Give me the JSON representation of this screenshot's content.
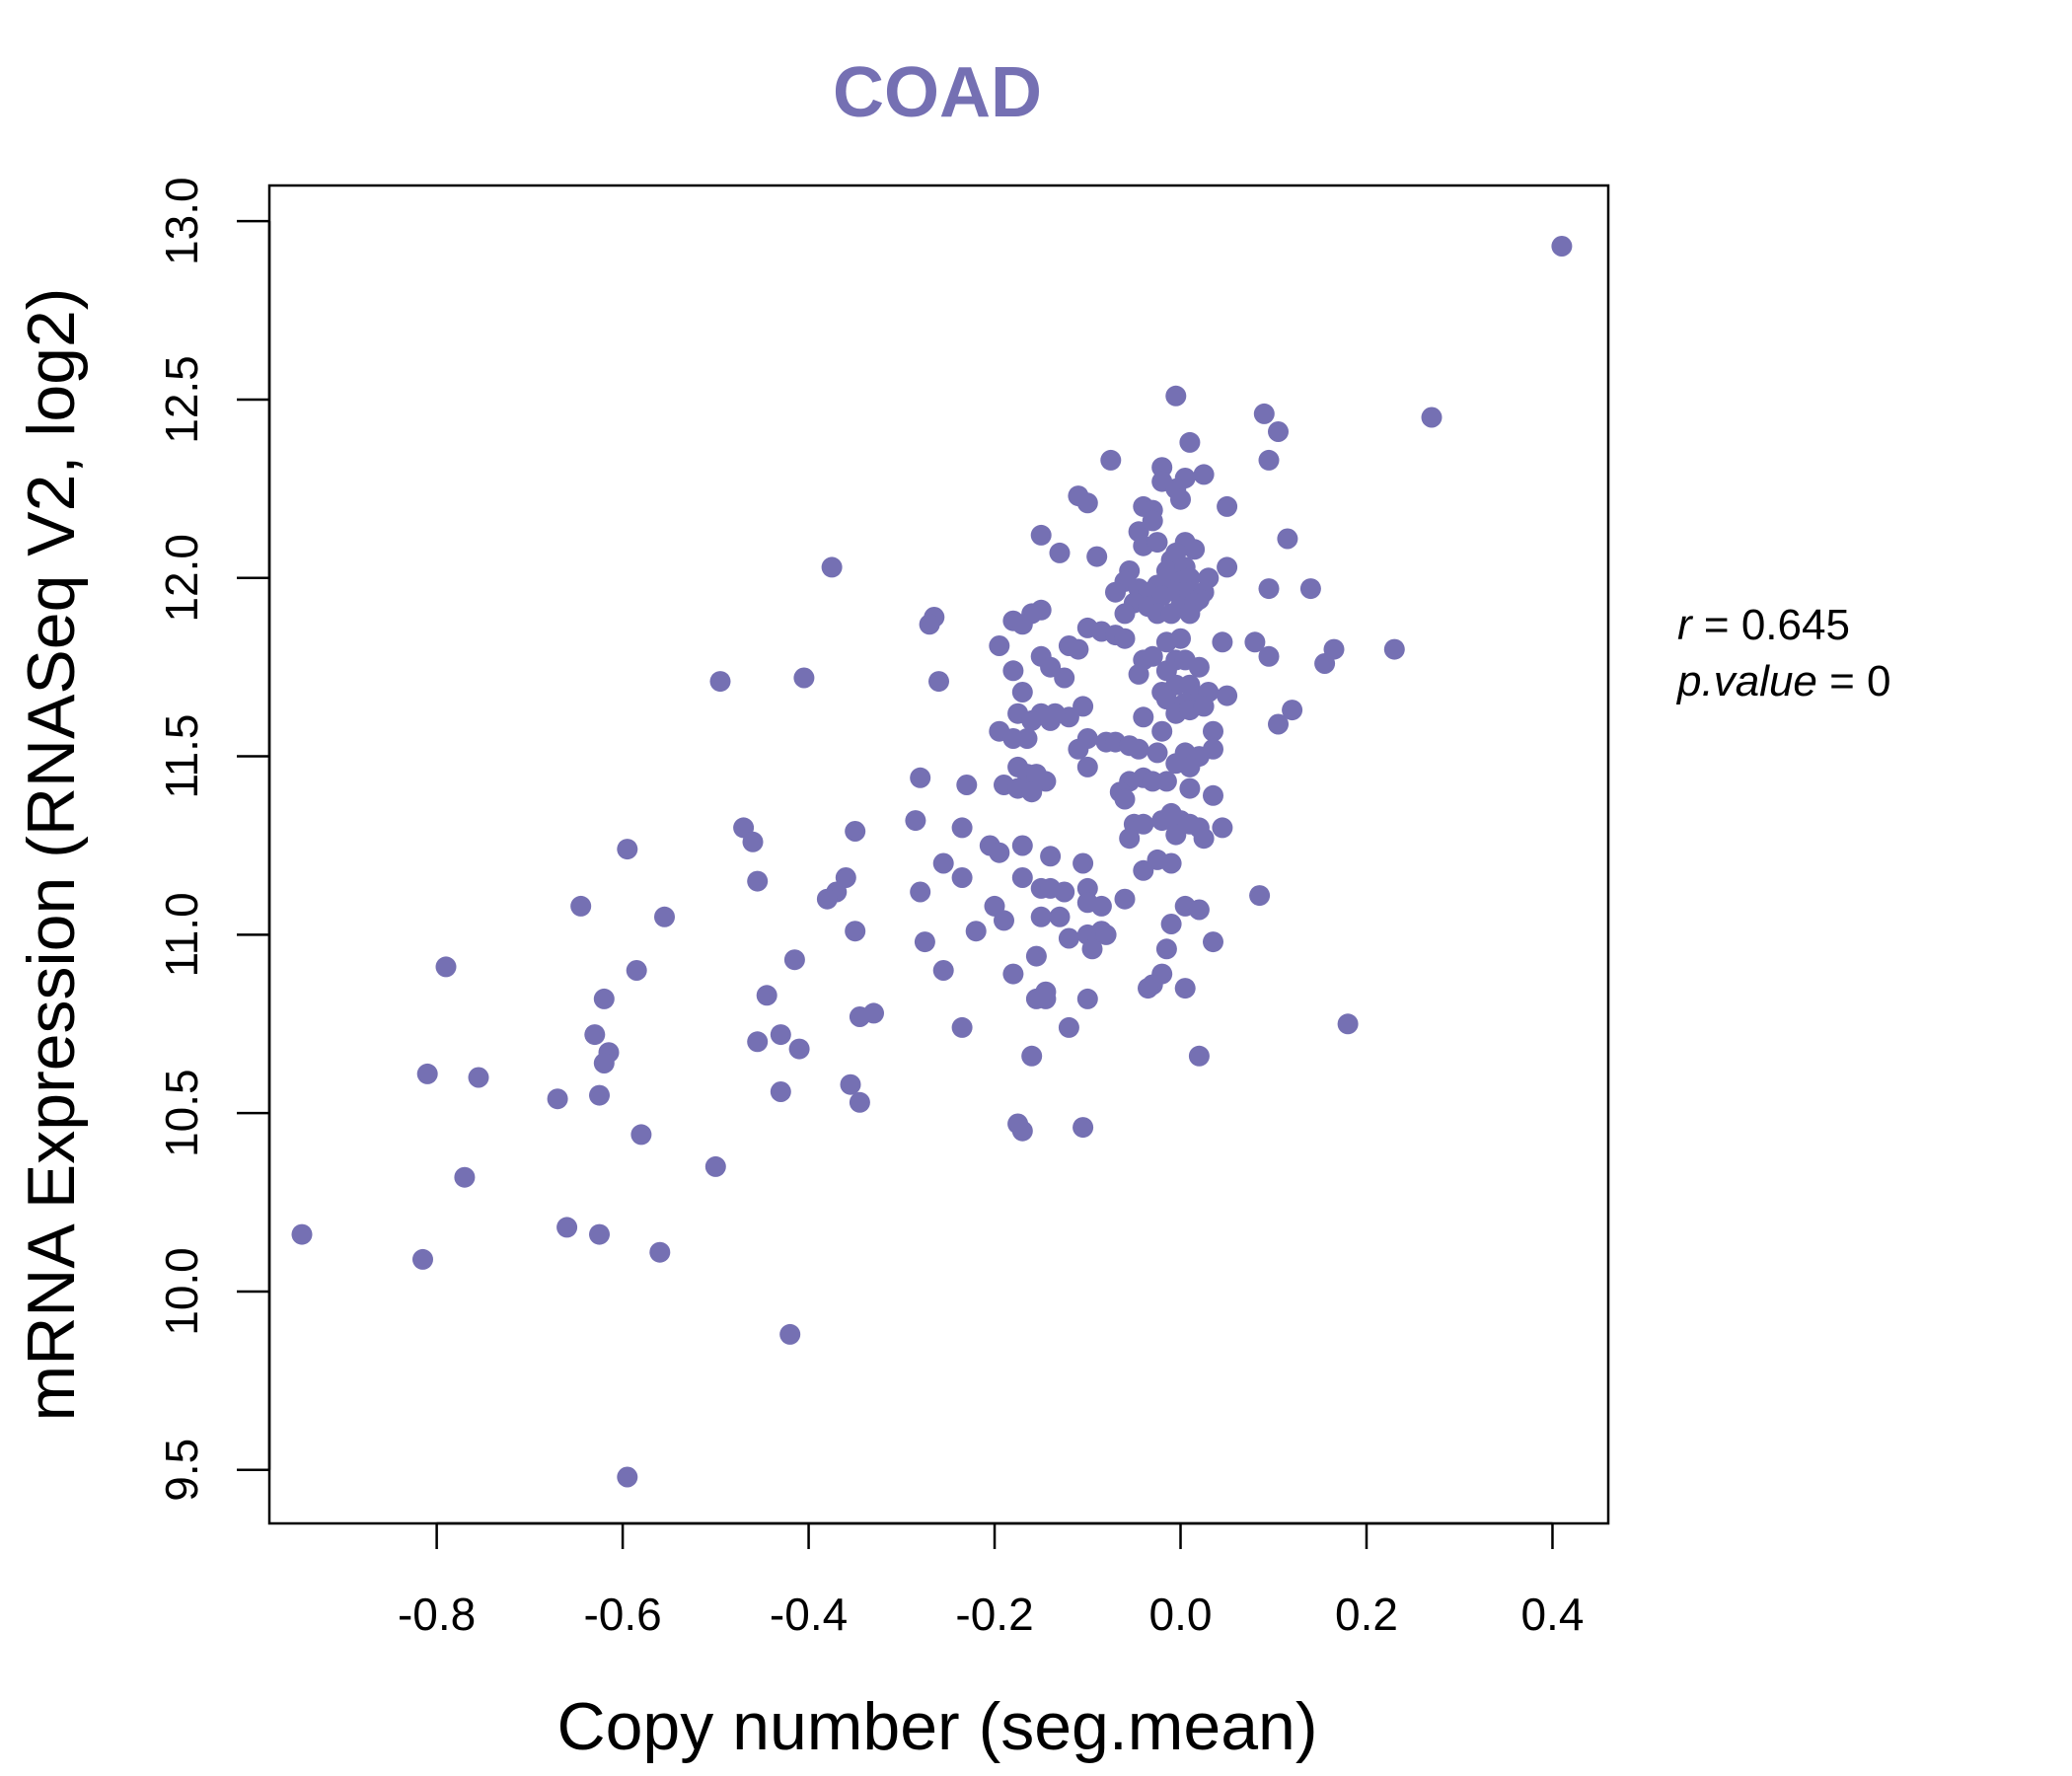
{
  "chart_data": {
    "type": "scatter",
    "title": "COAD",
    "xlabel": "Copy number (seg.mean)",
    "ylabel": "mRNA Expression (RNASeq V2, log2)",
    "xlim": [
      -0.98,
      0.46
    ],
    "ylim": [
      9.35,
      13.1
    ],
    "xticks": [
      "-0.8",
      "-0.6",
      "-0.4",
      "-0.2",
      "0.0",
      "0.2",
      "0.4"
    ],
    "yticks": [
      "9.5",
      "10.0",
      "10.5",
      "11.0",
      "11.5",
      "12.0",
      "12.5",
      "13.0"
    ],
    "grid": false,
    "point_color": "#7570b3",
    "title_color": "#7570b3",
    "annotation": {
      "r_label": "r",
      "r_value": "0.645",
      "p_label": "p.value",
      "p_value": "0"
    },
    "points": [
      [
        0.41,
        12.93
      ],
      [
        0.27,
        12.45
      ],
      [
        -0.005,
        12.51
      ],
      [
        0.09,
        12.46
      ],
      [
        0.105,
        12.41
      ],
      [
        0.01,
        12.38
      ],
      [
        -0.075,
        12.33
      ],
      [
        0.095,
        12.33
      ],
      [
        -0.02,
        12.31
      ],
      [
        0.025,
        12.29
      ],
      [
        -0.02,
        12.27
      ],
      [
        0.005,
        12.28
      ],
      [
        -0.005,
        12.25
      ],
      [
        -0.11,
        12.23
      ],
      [
        -0.1,
        12.21
      ],
      [
        0.0,
        12.22
      ],
      [
        -0.04,
        12.2
      ],
      [
        -0.03,
        12.19
      ],
      [
        0.05,
        12.2
      ],
      [
        -0.045,
        12.13
      ],
      [
        -0.03,
        12.16
      ],
      [
        -0.15,
        12.12
      ],
      [
        0.115,
        12.11
      ],
      [
        -0.04,
        12.09
      ],
      [
        -0.025,
        12.1
      ],
      [
        0.005,
        12.1
      ],
      [
        0.015,
        12.08
      ],
      [
        -0.13,
        12.07
      ],
      [
        -0.09,
        12.06
      ],
      [
        -0.01,
        12.05
      ],
      [
        -0.005,
        12.07
      ],
      [
        -0.375,
        12.03
      ],
      [
        0.05,
        12.03
      ],
      [
        -0.055,
        12.02
      ],
      [
        -0.015,
        12.02
      ],
      [
        0.005,
        12.03
      ],
      [
        -0.06,
        11.99
      ],
      [
        -0.025,
        11.98
      ],
      [
        -0.015,
        12.0
      ],
      [
        0.0,
        11.99
      ],
      [
        0.01,
        12.0
      ],
      [
        0.03,
        12.0
      ],
      [
        0.095,
        11.97
      ],
      [
        0.14,
        11.97
      ],
      [
        -0.045,
        11.97
      ],
      [
        -0.035,
        11.96
      ],
      [
        -0.07,
        11.96
      ],
      [
        -0.005,
        11.96
      ],
      [
        0.01,
        11.96
      ],
      [
        0.025,
        11.96
      ],
      [
        -0.02,
        11.95
      ],
      [
        0.02,
        11.94
      ],
      [
        -0.05,
        11.93
      ],
      [
        -0.035,
        11.92
      ],
      [
        0.0,
        11.92
      ],
      [
        0.015,
        11.93
      ],
      [
        -0.265,
        11.89
      ],
      [
        -0.15,
        11.91
      ],
      [
        -0.16,
        11.9
      ],
      [
        -0.06,
        11.9
      ],
      [
        -0.025,
        11.9
      ],
      [
        -0.01,
        11.9
      ],
      [
        0.01,
        11.9
      ],
      [
        -0.27,
        11.87
      ],
      [
        -0.18,
        11.88
      ],
      [
        -0.17,
        11.87
      ],
      [
        -0.1,
        11.86
      ],
      [
        -0.085,
        11.85
      ],
      [
        -0.07,
        11.84
      ],
      [
        -0.06,
        11.83
      ],
      [
        -0.015,
        11.82
      ],
      [
        0.0,
        11.83
      ],
      [
        0.045,
        11.82
      ],
      [
        0.08,
        11.82
      ],
      [
        -0.195,
        11.81
      ],
      [
        -0.12,
        11.81
      ],
      [
        -0.11,
        11.8
      ],
      [
        0.23,
        11.8
      ],
      [
        0.165,
        11.8
      ],
      [
        0.095,
        11.78
      ],
      [
        -0.15,
        11.78
      ],
      [
        -0.04,
        11.77
      ],
      [
        -0.03,
        11.78
      ],
      [
        -0.005,
        11.77
      ],
      [
        0.005,
        11.77
      ],
      [
        0.155,
        11.76
      ],
      [
        -0.14,
        11.75
      ],
      [
        -0.18,
        11.74
      ],
      [
        -0.045,
        11.73
      ],
      [
        -0.015,
        11.74
      ],
      [
        0.02,
        11.75
      ],
      [
        -0.405,
        11.72
      ],
      [
        -0.495,
        11.71
      ],
      [
        -0.26,
        11.71
      ],
      [
        -0.125,
        11.72
      ],
      [
        -0.005,
        11.7
      ],
      [
        0.01,
        11.7
      ],
      [
        -0.17,
        11.68
      ],
      [
        -0.02,
        11.68
      ],
      [
        0.015,
        11.67
      ],
      [
        0.03,
        11.68
      ],
      [
        0.05,
        11.67
      ],
      [
        -0.015,
        11.66
      ],
      [
        0.005,
        11.65
      ],
      [
        -0.105,
        11.64
      ],
      [
        0.12,
        11.63
      ],
      [
        -0.175,
        11.62
      ],
      [
        -0.15,
        11.62
      ],
      [
        -0.12,
        11.61
      ],
      [
        -0.04,
        11.61
      ],
      [
        -0.005,
        11.62
      ],
      [
        0.01,
        11.63
      ],
      [
        0.025,
        11.64
      ],
      [
        -0.16,
        11.6
      ],
      [
        -0.14,
        11.6
      ],
      [
        -0.135,
        11.62
      ],
      [
        0.105,
        11.59
      ],
      [
        -0.195,
        11.57
      ],
      [
        -0.02,
        11.57
      ],
      [
        0.035,
        11.57
      ],
      [
        -0.18,
        11.55
      ],
      [
        -0.165,
        11.55
      ],
      [
        -0.1,
        11.55
      ],
      [
        -0.08,
        11.54
      ],
      [
        -0.07,
        11.54
      ],
      [
        -0.055,
        11.53
      ],
      [
        -0.045,
        11.52
      ],
      [
        -0.11,
        11.52
      ],
      [
        -0.025,
        11.51
      ],
      [
        0.005,
        11.51
      ],
      [
        0.02,
        11.5
      ],
      [
        0.035,
        11.52
      ],
      [
        -0.005,
        11.48
      ],
      [
        0.01,
        11.47
      ],
      [
        -0.175,
        11.47
      ],
      [
        -0.1,
        11.47
      ],
      [
        -0.165,
        11.45
      ],
      [
        -0.155,
        11.45
      ],
      [
        -0.04,
        11.44
      ],
      [
        -0.28,
        11.44
      ],
      [
        -0.055,
        11.43
      ],
      [
        -0.145,
        11.43
      ],
      [
        -0.03,
        11.43
      ],
      [
        -0.015,
        11.43
      ],
      [
        -0.23,
        11.42
      ],
      [
        -0.19,
        11.42
      ],
      [
        -0.175,
        11.41
      ],
      [
        -0.16,
        11.4
      ],
      [
        0.01,
        11.41
      ],
      [
        -0.065,
        11.4
      ],
      [
        -0.06,
        11.38
      ],
      [
        0.035,
        11.39
      ],
      [
        -0.01,
        11.34
      ],
      [
        -0.02,
        11.32
      ],
      [
        -0.05,
        11.31
      ],
      [
        -0.04,
        11.31
      ],
      [
        0.0,
        11.32
      ],
      [
        -0.01,
        11.33
      ],
      [
        0.01,
        11.31
      ],
      [
        0.02,
        11.3
      ],
      [
        0.045,
        11.3
      ],
      [
        -0.285,
        11.32
      ],
      [
        -0.235,
        11.3
      ],
      [
        -0.47,
        11.3
      ],
      [
        -0.35,
        11.29
      ],
      [
        -0.005,
        11.28
      ],
      [
        0.025,
        11.27
      ],
      [
        -0.055,
        11.27
      ],
      [
        -0.46,
        11.26
      ],
      [
        -0.17,
        11.25
      ],
      [
        -0.205,
        11.25
      ],
      [
        -0.195,
        11.23
      ],
      [
        -0.595,
        11.24
      ],
      [
        -0.14,
        11.22
      ],
      [
        -0.105,
        11.2
      ],
      [
        -0.025,
        11.21
      ],
      [
        -0.01,
        11.2
      ],
      [
        -0.04,
        11.18
      ],
      [
        -0.255,
        11.2
      ],
      [
        -0.235,
        11.16
      ],
      [
        -0.17,
        11.16
      ],
      [
        -0.36,
        11.16
      ],
      [
        -0.455,
        11.15
      ],
      [
        -0.15,
        11.13
      ],
      [
        -0.14,
        11.13
      ],
      [
        -0.125,
        11.12
      ],
      [
        -0.1,
        11.13
      ],
      [
        -0.28,
        11.12
      ],
      [
        -0.37,
        11.12
      ],
      [
        -0.38,
        11.1
      ],
      [
        -0.06,
        11.1
      ],
      [
        -0.1,
        11.09
      ],
      [
        0.085,
        11.11
      ],
      [
        -0.2,
        11.08
      ],
      [
        -0.085,
        11.08
      ],
      [
        0.005,
        11.08
      ],
      [
        0.02,
        11.07
      ],
      [
        -0.645,
        11.08
      ],
      [
        -0.555,
        11.05
      ],
      [
        -0.15,
        11.05
      ],
      [
        -0.13,
        11.05
      ],
      [
        -0.19,
        11.04
      ],
      [
        -0.01,
        11.03
      ],
      [
        -0.35,
        11.01
      ],
      [
        -0.22,
        11.01
      ],
      [
        -0.1,
        11.0
      ],
      [
        -0.085,
        11.01
      ],
      [
        -0.08,
        11.0
      ],
      [
        -0.12,
        10.99
      ],
      [
        -0.275,
        10.98
      ],
      [
        0.035,
        10.98
      ],
      [
        -0.095,
        10.96
      ],
      [
        -0.015,
        10.96
      ],
      [
        -0.155,
        10.94
      ],
      [
        -0.415,
        10.93
      ],
      [
        -0.79,
        10.91
      ],
      [
        -0.585,
        10.9
      ],
      [
        -0.255,
        10.9
      ],
      [
        -0.18,
        10.89
      ],
      [
        -0.02,
        10.89
      ],
      [
        -0.03,
        10.86
      ],
      [
        -0.145,
        10.84
      ],
      [
        0.005,
        10.85
      ],
      [
        -0.035,
        10.85
      ],
      [
        -0.445,
        10.83
      ],
      [
        -0.62,
        10.82
      ],
      [
        -0.155,
        10.82
      ],
      [
        -0.145,
        10.82
      ],
      [
        -0.1,
        10.82
      ],
      [
        -0.33,
        10.78
      ],
      [
        -0.345,
        10.77
      ],
      [
        0.18,
        10.75
      ],
      [
        -0.235,
        10.74
      ],
      [
        -0.12,
        10.74
      ],
      [
        -0.63,
        10.72
      ],
      [
        -0.43,
        10.72
      ],
      [
        -0.455,
        10.7
      ],
      [
        -0.41,
        10.68
      ],
      [
        -0.615,
        10.67
      ],
      [
        -0.62,
        10.64
      ],
      [
        -0.16,
        10.66
      ],
      [
        0.02,
        10.66
      ],
      [
        -0.81,
        10.61
      ],
      [
        -0.755,
        10.6
      ],
      [
        -0.355,
        10.58
      ],
      [
        -0.43,
        10.56
      ],
      [
        -0.625,
        10.55
      ],
      [
        -0.67,
        10.54
      ],
      [
        -0.345,
        10.53
      ],
      [
        -0.175,
        10.47
      ],
      [
        -0.17,
        10.45
      ],
      [
        -0.105,
        10.46
      ],
      [
        -0.58,
        10.44
      ],
      [
        -0.5,
        10.35
      ],
      [
        -0.77,
        10.32
      ],
      [
        -0.66,
        10.18
      ],
      [
        -0.945,
        10.16
      ],
      [
        -0.625,
        10.16
      ],
      [
        -0.56,
        10.11
      ],
      [
        -0.815,
        10.09
      ],
      [
        -0.42,
        9.88
      ],
      [
        -0.595,
        9.48
      ]
    ]
  }
}
